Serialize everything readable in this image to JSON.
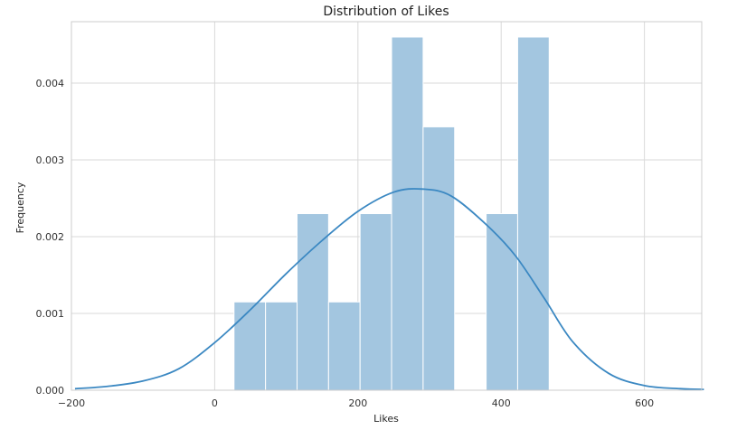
{
  "chart_data": {
    "type": "bar",
    "title": "Distribution of Likes",
    "xlabel": "Likes",
    "ylabel": "Frequency",
    "xlim": [
      -200,
      680
    ],
    "ylim": [
      0,
      0.0048
    ],
    "xticks": [
      -200,
      0,
      200,
      400,
      600
    ],
    "xtick_labels": [
      "−200",
      "0",
      "200",
      "400",
      "600"
    ],
    "yticks": [
      0.0,
      0.001,
      0.002,
      0.003,
      0.004
    ],
    "ytick_labels": [
      "0.000",
      "0.001",
      "0.002",
      "0.003",
      "0.004"
    ],
    "grid": true,
    "bins": [
      {
        "x0": 27,
        "x1": 71,
        "value": 0.00115
      },
      {
        "x0": 71,
        "x1": 115,
        "value": 0.00115
      },
      {
        "x0": 115,
        "x1": 159,
        "value": 0.0023
      },
      {
        "x0": 159,
        "x1": 203,
        "value": 0.00115
      },
      {
        "x0": 203,
        "x1": 247,
        "value": 0.0023
      },
      {
        "x0": 247,
        "x1": 291,
        "value": 0.0046
      },
      {
        "x0": 291,
        "x1": 335,
        "value": 0.00343
      },
      {
        "x0": 335,
        "x1": 379,
        "value": 0.0
      },
      {
        "x0": 379,
        "x1": 423,
        "value": 0.0023
      },
      {
        "x0": 423,
        "x1": 467,
        "value": 0.0046
      }
    ],
    "kde": {
      "x": [
        -195,
        -150,
        -100,
        -50,
        0,
        50,
        100,
        150,
        200,
        250,
        290,
        330,
        380,
        420,
        460,
        500,
        550,
        600,
        650,
        683
      ],
      "y": [
        2e-05,
        5e-05,
        0.00012,
        0.00028,
        0.00062,
        0.00105,
        0.00152,
        0.00195,
        0.00233,
        0.00258,
        0.00262,
        0.00253,
        0.00215,
        0.00175,
        0.0012,
        0.00063,
        0.00022,
        6e-05,
        2e-05,
        1e-05
      ]
    },
    "colors": {
      "bar_fill": "#a3c6e0",
      "bar_edge": "#ffffff",
      "kde_line": "#3b88c2",
      "grid": "#d9d9d9",
      "frame": "#cccccc"
    }
  }
}
